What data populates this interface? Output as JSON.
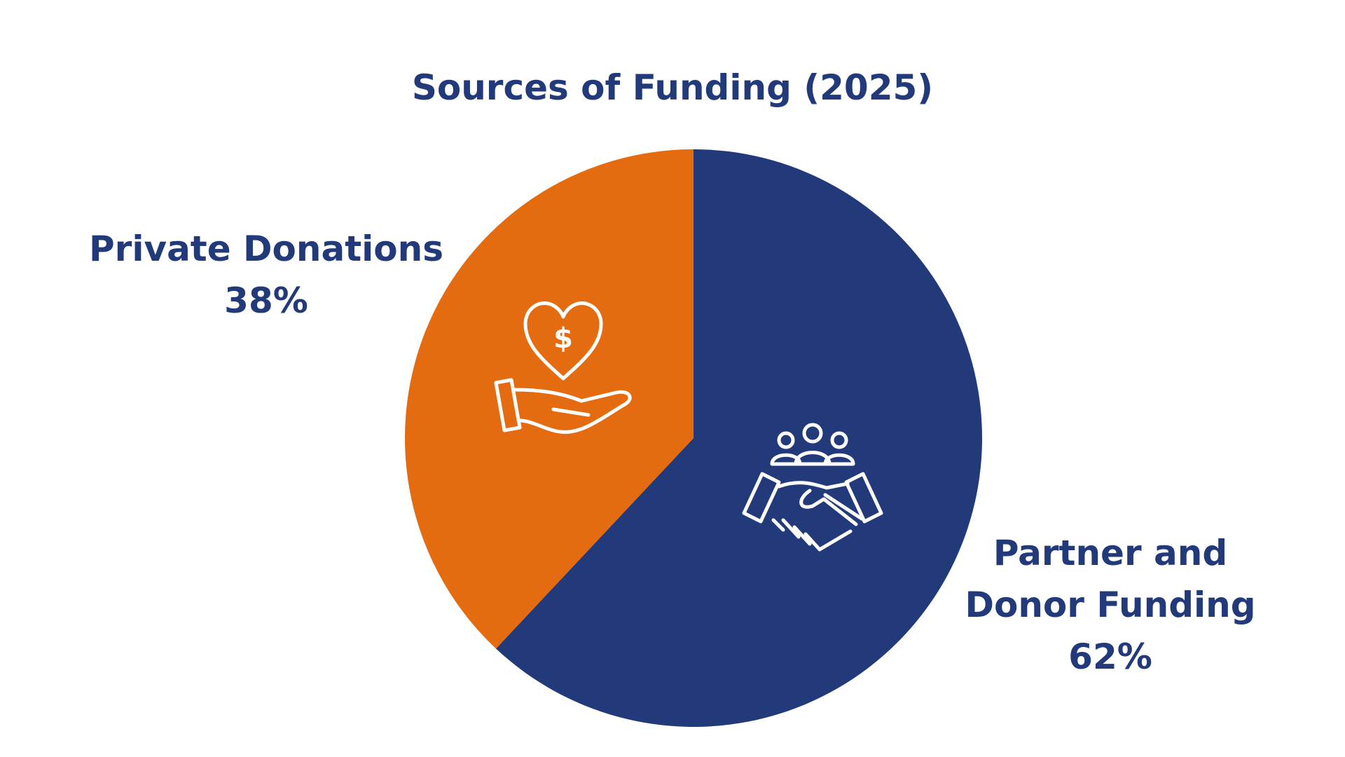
{
  "chart_data": {
    "type": "pie",
    "title": "Sources of Funding (2025)",
    "categories": [
      "Partner and Donor Funding",
      "Private Donations"
    ],
    "values": [
      62,
      38
    ],
    "value_labels": [
      "62%",
      "38%"
    ],
    "colors": [
      "#22397a",
      "#e56b10"
    ]
  }
}
